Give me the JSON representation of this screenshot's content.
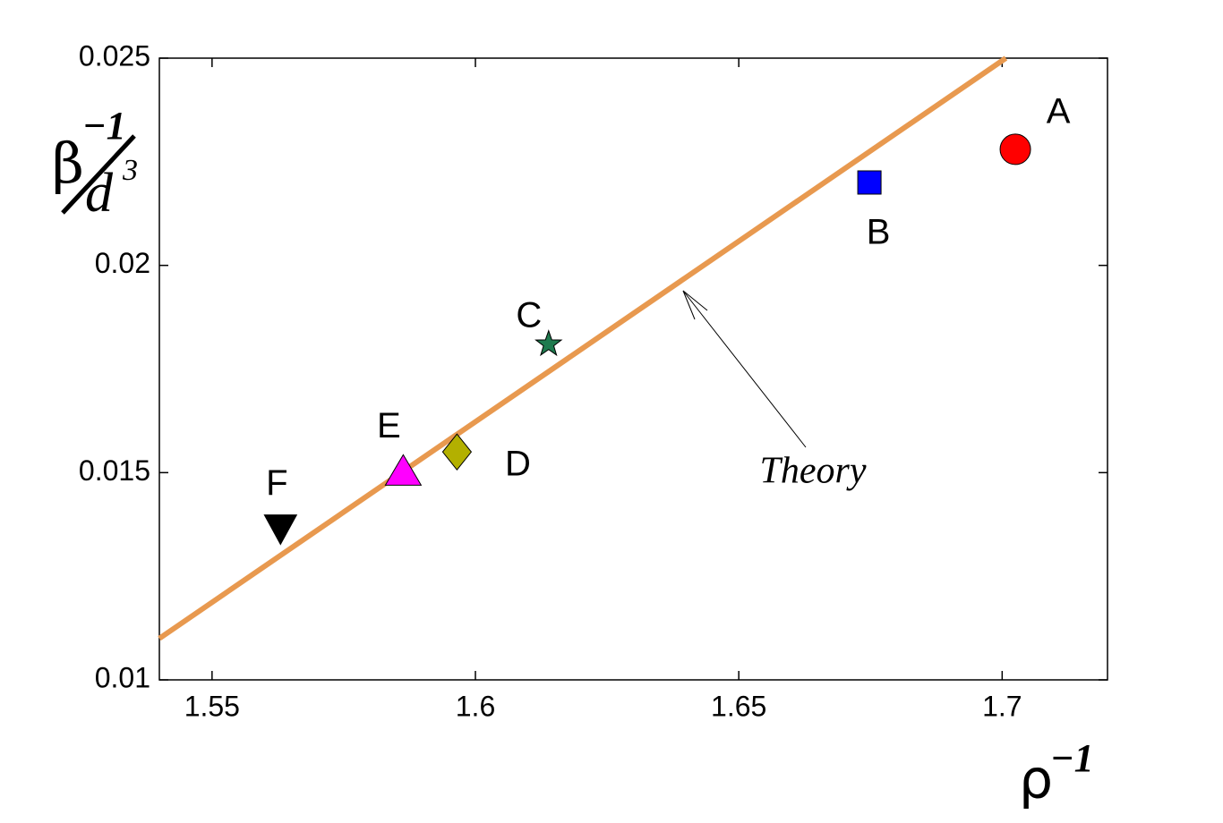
{
  "chart_data": {
    "type": "scatter",
    "xlabel": {
      "base": "ρ",
      "sup": "−1"
    },
    "ylabel": {
      "numerator": "β",
      "numerator_sup": "−1",
      "denominator": "d",
      "denominator_sup": "3"
    },
    "xlim": [
      1.54,
      1.72
    ],
    "ylim": [
      0.01,
      0.025
    ],
    "xticks": [
      1.55,
      1.6,
      1.65,
      1.7
    ],
    "yticks": [
      0.01,
      0.015,
      0.02,
      0.025
    ],
    "line": {
      "name": "Theory",
      "color": "#e8994f",
      "x": [
        1.54,
        1.7007
      ],
      "values": [
        0.011,
        0.025
      ]
    },
    "series": [
      {
        "name": "A",
        "color": "#ff0000",
        "marker": "circle",
        "x": [
          1.7025
        ],
        "values": [
          0.0228
        ]
      },
      {
        "name": "B",
        "color": "#0000ff",
        "marker": "square",
        "x": [
          1.6748
        ],
        "values": [
          0.022
        ]
      },
      {
        "name": "C",
        "color": "#1e7a4e",
        "marker": "star",
        "x": [
          1.6139
        ],
        "values": [
          0.0181
        ]
      },
      {
        "name": "D",
        "color": "#b3b000",
        "marker": "diamond",
        "x": [
          1.5965
        ],
        "values": [
          0.0155
        ]
      },
      {
        "name": "E",
        "color": "#ff00ff",
        "marker": "triangle-up",
        "x": [
          1.5863
        ],
        "values": [
          0.015
        ]
      },
      {
        "name": "F",
        "color": "#000000",
        "marker": "triangle-down",
        "x": [
          1.563
        ],
        "values": [
          0.0137
        ]
      }
    ]
  }
}
